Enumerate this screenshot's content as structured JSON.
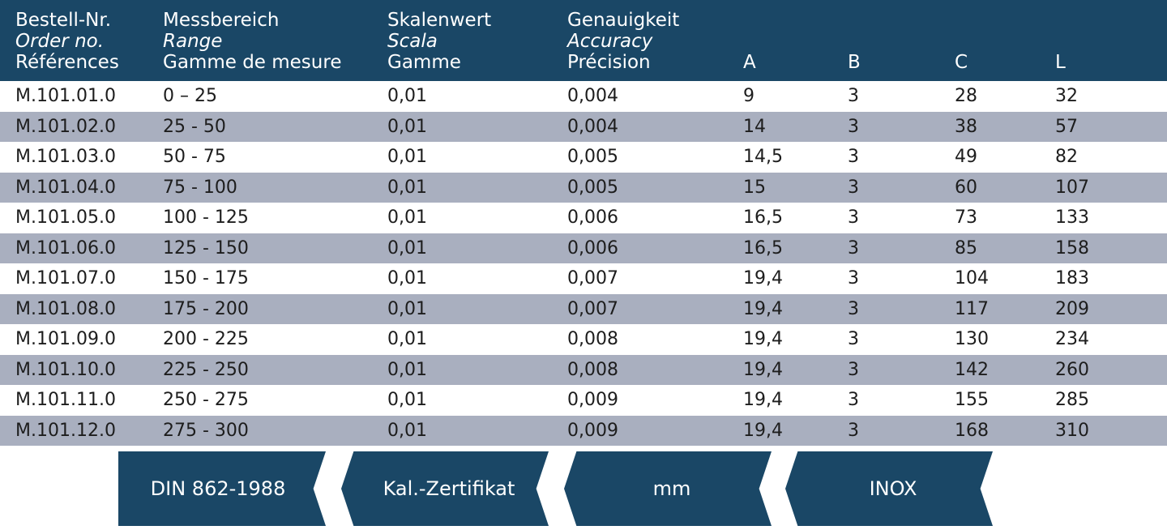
{
  "header": {
    "order": [
      "Bestell-Nr.",
      "Order no.",
      "Références"
    ],
    "range": [
      "Messbereich",
      "Range",
      "Gamme de mesure"
    ],
    "scale": [
      "Skalenwert",
      "Scala",
      "Gamme"
    ],
    "accuracy": [
      "Genauigkeit",
      "Accuracy",
      "Précision"
    ],
    "a": "A",
    "b": "B",
    "c": "C",
    "l": "L"
  },
  "rows": [
    [
      "M.101.01.0",
      "0 – 25",
      "0,01",
      "0,004",
      "9",
      "3",
      "28",
      "32"
    ],
    [
      "M.101.02.0",
      "25 - 50",
      "0,01",
      "0,004",
      "14",
      "3",
      "38",
      "57"
    ],
    [
      "M.101.03.0",
      "50 - 75",
      "0,01",
      "0,005",
      "14,5",
      "3",
      "49",
      "82"
    ],
    [
      "M.101.04.0",
      "75 - 100",
      "0,01",
      "0,005",
      "15",
      "3",
      "60",
      "107"
    ],
    [
      "M.101.05.0",
      "100 - 125",
      "0,01",
      "0,006",
      "16,5",
      "3",
      "73",
      "133"
    ],
    [
      "M.101.06.0",
      "125 - 150",
      "0,01",
      "0,006",
      "16,5",
      "3",
      "85",
      "158"
    ],
    [
      "M.101.07.0",
      "150 - 175",
      "0,01",
      "0,007",
      "19,4",
      "3",
      "104",
      "183"
    ],
    [
      "M.101.08.0",
      "175 - 200",
      "0,01",
      "0,007",
      "19,4",
      "3",
      "117",
      "209"
    ],
    [
      "M.101.09.0",
      "200 - 225",
      "0,01",
      "0,008",
      "19,4",
      "3",
      "130",
      "234"
    ],
    [
      "M.101.10.0",
      "225 - 250",
      "0,01",
      "0,008",
      "19,4",
      "3",
      "142",
      "260"
    ],
    [
      "M.101.11.0",
      "250 - 275",
      "0,01",
      "0,009",
      "19,4",
      "3",
      "155",
      "285"
    ],
    [
      "M.101.12.0",
      "275 - 300",
      "0,01",
      "0,009",
      "19,4",
      "3",
      "168",
      "310"
    ]
  ],
  "badges": [
    "DIN 862-1988",
    "Kal.-Zertifikat",
    "mm",
    "INOX"
  ],
  "colors": {
    "header_bg": "#1a4766",
    "stripe": "#a9afbf"
  }
}
